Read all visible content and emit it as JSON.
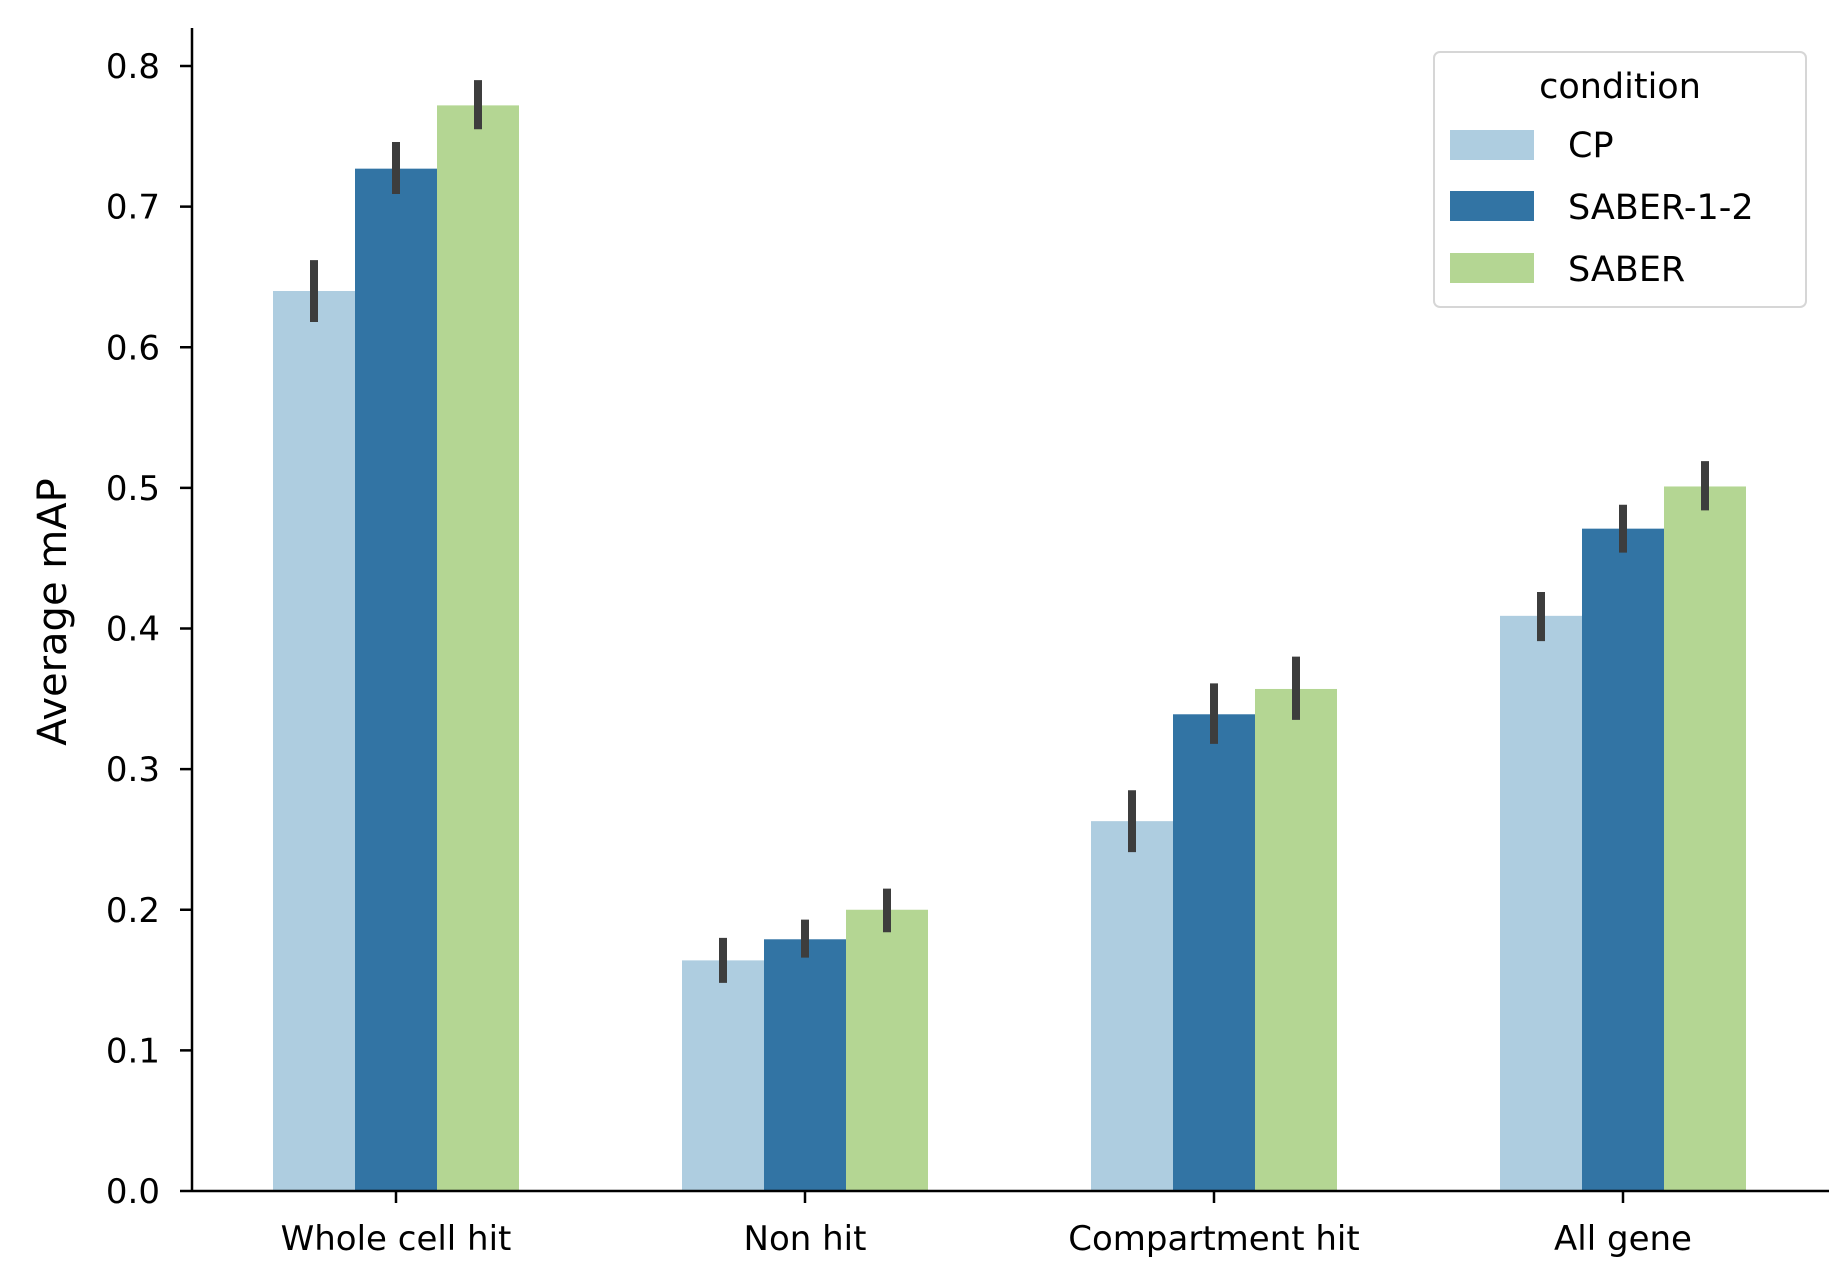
{
  "chart_data": {
    "type": "bar",
    "title": "",
    "xlabel": "",
    "ylabel": "Average mAP",
    "ylim": [
      0,
      0.8
    ],
    "yticks": [
      0.0,
      0.1,
      0.2,
      0.3,
      0.4,
      0.5,
      0.6,
      0.7,
      0.8
    ],
    "ytick_labels": [
      "0.0",
      "0.1",
      "0.2",
      "0.3",
      "0.4",
      "0.5",
      "0.6",
      "0.7",
      "0.8"
    ],
    "categories": [
      "Whole cell hit",
      "Non hit",
      "Compartment hit",
      "All gene"
    ],
    "grid": false,
    "legend": {
      "title": "condition",
      "position": "top-right"
    },
    "series": [
      {
        "name": "CP",
        "color": "#aecde0",
        "values": [
          0.64,
          0.164,
          0.263,
          0.409
        ],
        "err_low": [
          0.618,
          0.148,
          0.241,
          0.391
        ],
        "err_high": [
          0.662,
          0.18,
          0.285,
          0.426
        ]
      },
      {
        "name": "SABER-1-2",
        "color": "#3274a4",
        "values": [
          0.727,
          0.179,
          0.339,
          0.471
        ],
        "err_low": [
          0.709,
          0.166,
          0.318,
          0.454
        ],
        "err_high": [
          0.746,
          0.193,
          0.361,
          0.488
        ]
      },
      {
        "name": "SABER",
        "color": "#b4d693",
        "values": [
          0.772,
          0.2,
          0.357,
          0.501
        ],
        "err_low": [
          0.755,
          0.184,
          0.335,
          0.484
        ],
        "err_high": [
          0.79,
          0.215,
          0.38,
          0.519
        ]
      }
    ]
  }
}
